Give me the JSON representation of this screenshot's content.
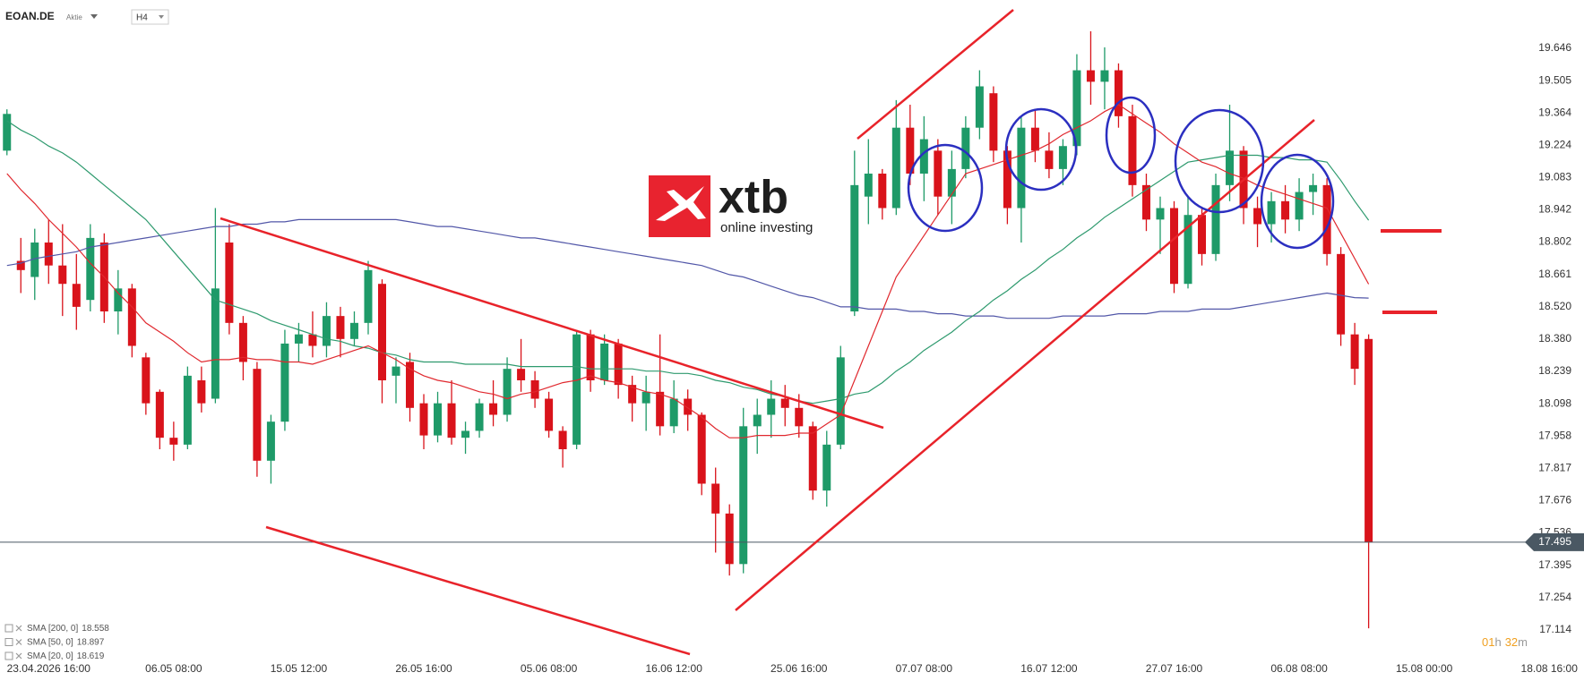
{
  "chart_data": {
    "type": "candlestick",
    "symbol": "EOAN.DE",
    "instrument_type": "Aktie",
    "timeframe": "H4",
    "up_color": "#1e9a68",
    "down_color": "#d9131b",
    "price_line_color": "#4a5863",
    "categories": [
      null,
      null,
      null,
      "23.04.2026 16:00",
      null,
      null,
      null,
      null,
      null,
      null,
      null,
      null,
      "06.05 08:00",
      null,
      null,
      null,
      null,
      null,
      null,
      null,
      null,
      "15.05 12:00",
      null,
      null,
      null,
      null,
      null,
      null,
      null,
      null,
      "26.05 16:00",
      null,
      null,
      null,
      null,
      null,
      null,
      null,
      null,
      "05.06 08:00",
      null,
      null,
      null,
      null,
      null,
      null,
      null,
      null,
      "16.06 12:00",
      null,
      null,
      null,
      null,
      null,
      null,
      null,
      null,
      "25.06 16:00",
      null,
      null,
      null,
      null,
      null,
      null,
      null,
      null,
      "07.07 08:00",
      null,
      null,
      null,
      null,
      null,
      null,
      null,
      null,
      "16.07 12:00",
      null,
      null,
      null,
      null,
      null,
      null,
      null,
      null,
      "27.07 16:00",
      null,
      null,
      null,
      null,
      null,
      null,
      null,
      null,
      "06.08 08:00",
      null,
      null,
      null,
      null,
      null,
      null,
      null,
      null,
      "15.08 00:00",
      null,
      null,
      null,
      null,
      null,
      null,
      null,
      null,
      "18.08 16:00",
      null,
      null
    ],
    "open": [
      19.2,
      18.72,
      18.65,
      18.8,
      18.7,
      18.62,
      18.55,
      18.8,
      18.5,
      18.6,
      18.3,
      18.15,
      17.95,
      17.92,
      18.2,
      18.12,
      18.8,
      18.45,
      18.25,
      17.85,
      18.02,
      18.36,
      18.4,
      18.35,
      18.48,
      18.38,
      18.45,
      18.62,
      18.22,
      18.28,
      18.1,
      17.96,
      18.1,
      17.95,
      17.98,
      18.1,
      18.05,
      18.25,
      18.2,
      18.12,
      17.98,
      17.92,
      18.4,
      18.2,
      18.36,
      18.18,
      18.1,
      18.15,
      18.0,
      18.12,
      18.05,
      17.75,
      17.62,
      17.4,
      18.0,
      18.05,
      18.12,
      18.08,
      18.0,
      17.72,
      17.92,
      18.5,
      19.0,
      19.1,
      18.95,
      19.3,
      19.1,
      19.2,
      19.0,
      19.12,
      19.3,
      19.45,
      19.2,
      18.95,
      19.3,
      19.2,
      19.12,
      19.22,
      19.55,
      19.5,
      19.55,
      19.35,
      19.05,
      18.9,
      18.95,
      18.62,
      18.92,
      18.75,
      19.05,
      19.2,
      18.95,
      18.88,
      18.98,
      18.9,
      19.02,
      19.05,
      18.75,
      18.4,
      18.38,
      null,
      null,
      null,
      null,
      null,
      null,
      null,
      null,
      null,
      null,
      null,
      null,
      null,
      null,
      null
    ],
    "high": [
      19.38,
      18.82,
      18.86,
      18.9,
      18.88,
      18.75,
      18.88,
      18.84,
      18.68,
      18.62,
      18.32,
      18.16,
      18.02,
      18.26,
      18.26,
      18.95,
      18.88,
      18.48,
      18.28,
      18.05,
      18.42,
      18.45,
      18.5,
      18.54,
      18.52,
      18.5,
      18.72,
      18.64,
      18.3,
      18.32,
      18.14,
      18.15,
      18.2,
      18.02,
      18.12,
      18.2,
      18.3,
      18.38,
      18.24,
      18.15,
      18.0,
      18.42,
      18.42,
      18.4,
      18.38,
      18.22,
      18.22,
      18.4,
      18.2,
      18.16,
      18.06,
      17.82,
      17.66,
      18.08,
      18.12,
      18.2,
      18.18,
      18.14,
      18.02,
      17.98,
      18.35,
      19.2,
      19.25,
      19.12,
      19.42,
      19.4,
      19.35,
      19.25,
      19.2,
      19.35,
      19.55,
      19.48,
      19.22,
      19.35,
      19.38,
      19.28,
      19.25,
      19.62,
      19.72,
      19.65,
      19.58,
      19.4,
      19.1,
      19.0,
      18.98,
      19.0,
      18.95,
      19.1,
      19.4,
      19.22,
      19.0,
      19.02,
      19.05,
      19.08,
      19.1,
      19.08,
      18.78,
      18.45,
      18.4,
      null,
      null,
      null,
      null,
      null,
      null,
      null,
      null,
      null,
      null,
      null,
      null,
      null,
      null,
      null
    ],
    "low": [
      19.18,
      18.58,
      18.55,
      18.62,
      18.48,
      18.42,
      18.5,
      18.45,
      18.4,
      18.3,
      18.05,
      17.9,
      17.85,
      17.9,
      18.06,
      18.1,
      18.4,
      18.2,
      17.78,
      17.75,
      17.98,
      18.28,
      18.3,
      18.3,
      18.3,
      18.35,
      18.4,
      18.1,
      18.1,
      18.02,
      17.9,
      17.93,
      17.92,
      17.88,
      17.95,
      18.0,
      18.02,
      18.15,
      18.08,
      17.95,
      17.82,
      17.9,
      18.15,
      18.18,
      18.12,
      18.02,
      17.98,
      17.96,
      17.97,
      17.98,
      17.7,
      17.45,
      17.35,
      17.36,
      17.88,
      17.95,
      18.0,
      17.95,
      17.68,
      17.65,
      17.9,
      18.48,
      18.88,
      18.9,
      18.92,
      19.05,
      18.98,
      18.92,
      18.88,
      19.08,
      19.25,
      19.15,
      18.88,
      18.8,
      19.15,
      19.08,
      19.05,
      19.18,
      19.4,
      19.38,
      19.3,
      19.0,
      18.85,
      18.75,
      18.58,
      18.6,
      18.7,
      18.72,
      18.98,
      18.88,
      18.78,
      18.8,
      18.84,
      18.85,
      18.92,
      18.7,
      18.35,
      18.18,
      17.12,
      null,
      null,
      null,
      null,
      null,
      null,
      null,
      null,
      null,
      null,
      null,
      null,
      null,
      null,
      null
    ],
    "close": [
      19.36,
      18.68,
      18.8,
      18.7,
      18.62,
      18.52,
      18.82,
      18.5,
      18.6,
      18.35,
      18.1,
      17.95,
      17.92,
      18.22,
      18.1,
      18.6,
      18.45,
      18.28,
      17.85,
      18.02,
      18.36,
      18.4,
      18.35,
      18.48,
      18.38,
      18.45,
      18.68,
      18.2,
      18.26,
      18.08,
      17.96,
      18.1,
      17.95,
      17.98,
      18.1,
      18.05,
      18.25,
      18.2,
      18.12,
      17.98,
      17.9,
      18.4,
      18.2,
      18.36,
      18.18,
      18.1,
      18.15,
      18.0,
      18.12,
      18.05,
      17.75,
      17.62,
      17.4,
      18.0,
      18.05,
      18.12,
      18.08,
      18.0,
      17.72,
      17.92,
      18.3,
      19.05,
      19.1,
      18.95,
      19.3,
      19.1,
      19.25,
      19.0,
      19.12,
      19.3,
      19.48,
      19.2,
      18.95,
      19.3,
      19.2,
      19.12,
      19.22,
      19.55,
      19.5,
      19.55,
      19.35,
      19.05,
      18.9,
      18.95,
      18.62,
      18.92,
      18.75,
      19.05,
      19.2,
      18.95,
      18.88,
      18.98,
      18.9,
      19.02,
      19.05,
      18.75,
      18.4,
      18.25,
      17.495,
      null,
      null,
      null,
      null,
      null,
      null,
      null,
      null,
      null,
      null,
      null,
      null,
      null,
      null,
      null
    ],
    "indicators": [
      {
        "name": "SMA [200, 0]",
        "color": "#5257a8",
        "values": [
          18.7,
          18.71,
          18.73,
          18.74,
          18.75,
          18.76,
          18.78,
          18.79,
          18.8,
          18.81,
          18.82,
          18.83,
          18.84,
          18.85,
          18.86,
          18.87,
          18.87,
          18.88,
          18.88,
          18.89,
          18.89,
          18.9,
          18.9,
          18.9,
          18.9,
          18.9,
          18.9,
          18.9,
          18.9,
          18.89,
          18.88,
          18.87,
          18.87,
          18.86,
          18.85,
          18.84,
          18.83,
          18.82,
          18.82,
          18.81,
          18.8,
          18.79,
          18.78,
          18.77,
          18.76,
          18.75,
          18.74,
          18.73,
          18.72,
          18.71,
          18.7,
          18.68,
          18.66,
          18.65,
          18.63,
          18.61,
          18.59,
          18.57,
          18.56,
          18.54,
          18.52,
          18.52,
          18.51,
          18.51,
          18.51,
          18.5,
          18.5,
          18.49,
          18.49,
          18.48,
          18.48,
          18.48,
          18.47,
          18.47,
          18.47,
          18.47,
          18.48,
          18.48,
          18.48,
          18.48,
          18.49,
          18.49,
          18.49,
          18.5,
          18.5,
          18.5,
          18.51,
          18.51,
          18.51,
          18.52,
          18.53,
          18.54,
          18.55,
          18.56,
          18.57,
          18.58,
          18.57,
          18.56,
          18.558,
          null,
          null,
          null,
          null,
          null,
          null,
          null,
          null,
          null,
          null,
          null,
          null,
          null,
          null,
          null
        ]
      },
      {
        "name": "SMA [50, 0]",
        "color": "#2e9a6e",
        "values": [
          19.33,
          19.29,
          19.26,
          19.22,
          19.19,
          19.15,
          19.1,
          19.05,
          19.0,
          18.95,
          18.9,
          18.83,
          18.76,
          18.69,
          18.62,
          18.55,
          18.53,
          18.51,
          18.49,
          18.46,
          18.44,
          18.42,
          18.4,
          18.38,
          18.37,
          18.35,
          18.34,
          18.32,
          18.31,
          18.29,
          18.28,
          18.28,
          18.28,
          18.27,
          18.27,
          18.27,
          18.27,
          18.26,
          18.26,
          18.26,
          18.26,
          18.26,
          18.25,
          18.25,
          18.25,
          18.25,
          18.24,
          18.24,
          18.23,
          18.23,
          18.22,
          18.2,
          18.19,
          18.17,
          18.16,
          18.14,
          18.13,
          18.11,
          18.1,
          18.11,
          18.12,
          18.14,
          18.15,
          18.19,
          18.24,
          18.28,
          18.33,
          18.37,
          18.41,
          18.46,
          18.5,
          18.55,
          18.59,
          18.64,
          18.68,
          18.73,
          18.77,
          18.82,
          18.86,
          18.91,
          18.95,
          18.99,
          19.03,
          19.07,
          19.11,
          19.15,
          19.16,
          19.17,
          19.18,
          19.18,
          19.18,
          19.17,
          19.17,
          19.16,
          19.16,
          19.15,
          19.07,
          18.98,
          18.897,
          null,
          null,
          null,
          null,
          null,
          null,
          null,
          null,
          null,
          null,
          null,
          null,
          null,
          null,
          null
        ]
      },
      {
        "name": "SMA [20, 0]",
        "color": "#e0282e",
        "values": [
          19.1,
          19.03,
          18.97,
          18.9,
          18.84,
          18.78,
          18.71,
          18.65,
          18.58,
          18.52,
          18.45,
          18.41,
          18.37,
          18.32,
          18.28,
          18.29,
          18.29,
          18.3,
          18.29,
          18.29,
          18.28,
          18.28,
          18.27,
          18.29,
          18.31,
          18.33,
          18.35,
          18.32,
          18.29,
          18.25,
          18.22,
          18.2,
          18.19,
          18.17,
          18.15,
          18.14,
          18.12,
          18.14,
          18.15,
          18.17,
          18.19,
          18.2,
          18.22,
          18.2,
          18.19,
          18.17,
          18.15,
          18.14,
          18.12,
          18.08,
          18.04,
          17.99,
          17.95,
          17.95,
          17.96,
          17.96,
          17.96,
          17.97,
          17.97,
          18.01,
          18.05,
          18.2,
          18.35,
          18.5,
          18.65,
          18.74,
          18.83,
          18.92,
          19.01,
          19.1,
          19.12,
          19.14,
          19.16,
          19.18,
          19.2,
          19.23,
          19.27,
          19.3,
          19.33,
          19.37,
          19.4,
          19.36,
          19.32,
          19.28,
          19.23,
          19.19,
          19.15,
          19.13,
          19.1,
          19.08,
          19.05,
          19.03,
          19.01,
          18.99,
          18.97,
          18.95,
          18.84,
          18.73,
          18.619,
          null,
          null,
          null,
          null,
          null,
          null,
          null,
          null,
          null,
          null,
          null,
          null,
          null,
          null,
          null
        ]
      }
    ],
    "ylim": [
      16.996,
      19.856
    ],
    "yticks": [
      17.114,
      17.254,
      17.395,
      17.536,
      17.676,
      17.817,
      17.958,
      18.098,
      18.239,
      {
        "value": 18.38,
        "label": "18.380"
      },
      {
        "value": 18.52,
        "label": "18.520"
      },
      18.661,
      18.802,
      18.942,
      19.083,
      19.224,
      19.364,
      19.505,
      19.646
    ],
    "logo": {
      "brand": "xtb",
      "tagline": "online investing"
    },
    "countdown": [
      "01",
      "h",
      "32",
      "m"
    ]
  }
}
